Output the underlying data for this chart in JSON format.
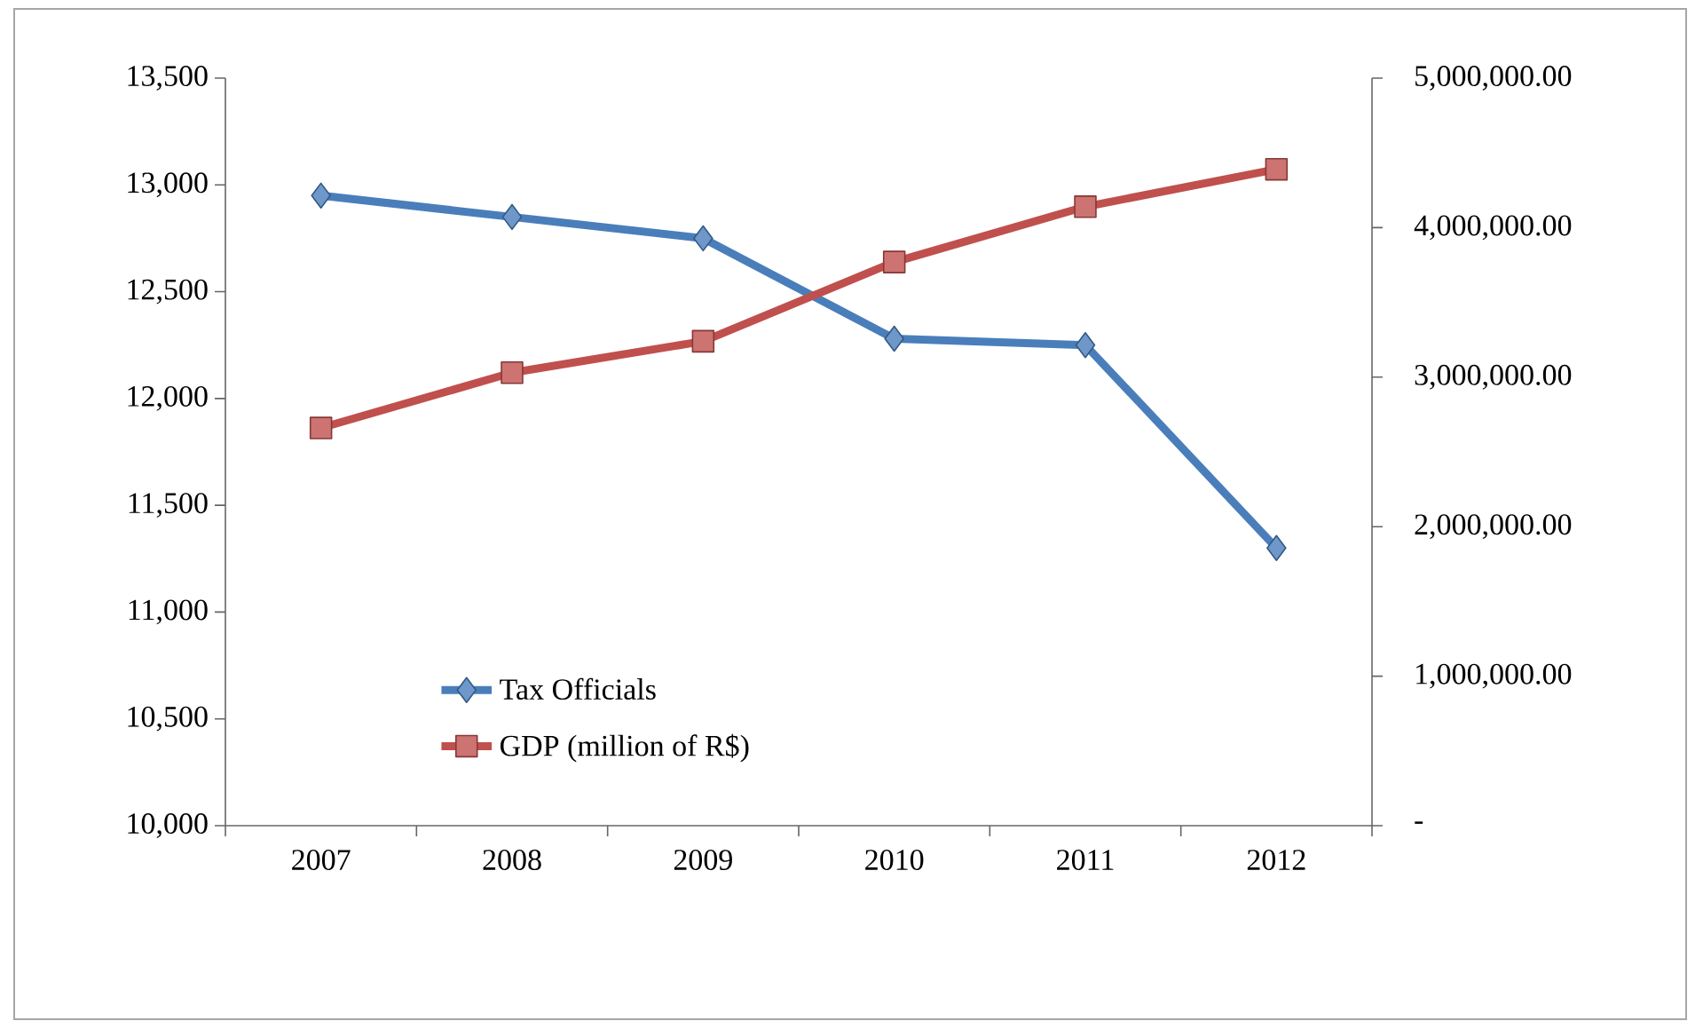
{
  "chart_data": {
    "type": "line",
    "categories": [
      "2007",
      "2008",
      "2009",
      "2010",
      "2011",
      "2012"
    ],
    "series": [
      {
        "name": "Tax Officials",
        "color": "#4a7ebb",
        "marker": "diamond",
        "values": [
          12950,
          12850,
          12750,
          12280,
          12250,
          11300
        ]
      },
      {
        "name": "GDP (million of R$)",
        "color": "#c0504d",
        "marker": "square",
        "axis": "y2",
        "values": [
          2660000,
          3030000,
          3240000,
          3770000,
          4140000,
          4390000
        ]
      }
    ],
    "ylim": [
      10000,
      13500
    ],
    "yticks": [
      {
        "value": 10000,
        "label": "10,000"
      },
      {
        "value": 10500,
        "label": "10,500"
      },
      {
        "value": 11000,
        "label": "11,000"
      },
      {
        "value": 11500,
        "label": "11,500"
      },
      {
        "value": 12000,
        "label": "12,000"
      },
      {
        "value": 12500,
        "label": "12,500"
      },
      {
        "value": 13000,
        "label": "13,000"
      },
      {
        "value": 13500,
        "label": "13,500"
      }
    ],
    "y2lim": [
      0,
      5000000
    ],
    "y2ticks": [
      {
        "value": 0,
        "label": "-"
      },
      {
        "value": 1000000,
        "label": "1,000,000.00"
      },
      {
        "value": 2000000,
        "label": "2,000,000.00"
      },
      {
        "value": 3000000,
        "label": "3,000,000.00"
      },
      {
        "value": 4000000,
        "label": "4,000,000.00"
      },
      {
        "value": 5000000,
        "label": "5,000,000.00"
      }
    ],
    "legend": "bottom left",
    "grid": false
  }
}
